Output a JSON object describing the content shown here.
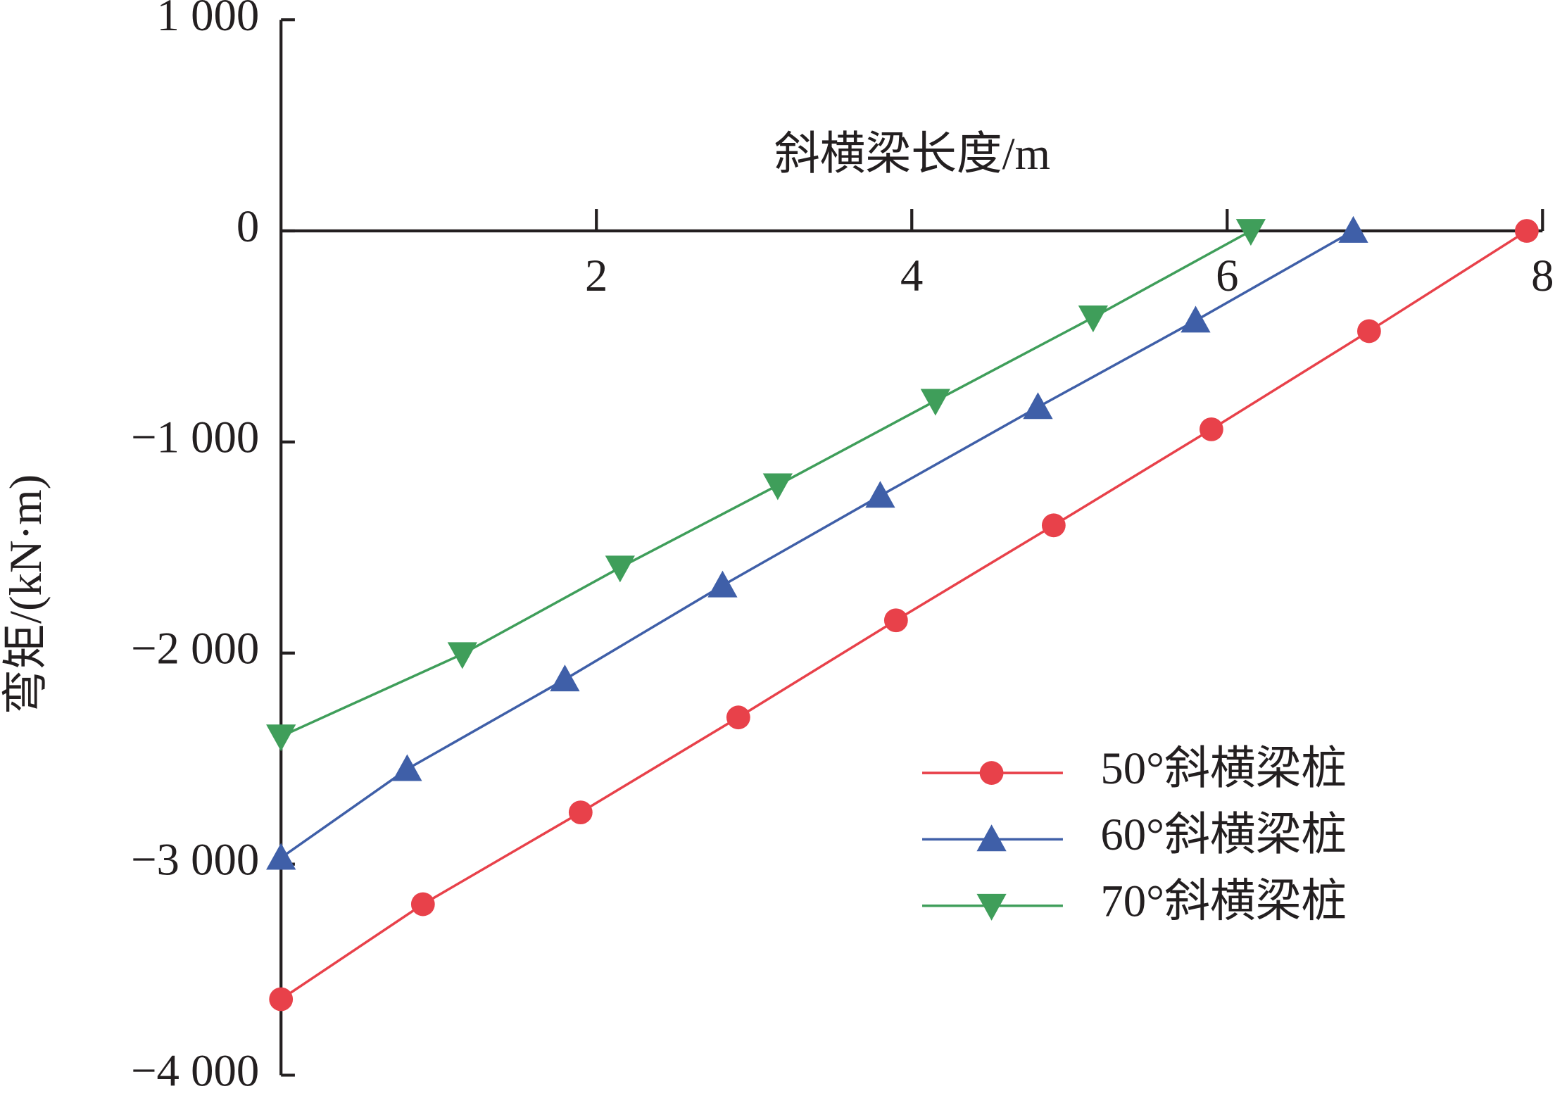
{
  "chart_data": {
    "type": "line",
    "xlabel": "斜横梁长度/m",
    "ylabel": "弯矩/(kN·m)",
    "xlim": [
      0,
      8
    ],
    "xticks": [
      2,
      4,
      6,
      8
    ],
    "ylim": [
      -4000,
      1000
    ],
    "yticks": [
      {
        "value": 1000,
        "label": "1 000"
      },
      0,
      {
        "value": -1000,
        "label": "−1 000"
      },
      {
        "value": -2000,
        "label": "−2 000"
      },
      {
        "value": -3000,
        "label": "−3 000"
      },
      {
        "value": -4000,
        "label": "−4 000"
      }
    ],
    "legend": "lower right",
    "series": [
      {
        "name": "50°斜横梁桩",
        "color": "#e8414a",
        "marker": "circle",
        "x": [
          0,
          0.9,
          1.9,
          2.9,
          3.9,
          4.9,
          5.9,
          6.9,
          7.9
        ],
        "values": [
          -3640,
          -3190,
          -2755,
          -2305,
          -1845,
          -1395,
          -940,
          -475,
          0
        ]
      },
      {
        "name": "60°斜横梁桩",
        "color": "#3f5fa8",
        "marker": "triangle-up",
        "x": [
          0,
          0.8,
          1.8,
          2.8,
          3.8,
          4.8,
          5.8,
          6.8
        ],
        "values": [
          -2970,
          -2550,
          -2125,
          -1680,
          -1255,
          -835,
          -425,
          0
        ]
      },
      {
        "name": "70°斜横梁桩",
        "color": "#3f9e5a",
        "marker": "triangle-down",
        "x": [
          0,
          1.15,
          2.15,
          3.15,
          4.15,
          5.15,
          6.15
        ],
        "values": [
          -2395,
          -2005,
          -1595,
          -1205,
          -805,
          -410,
          0
        ]
      }
    ]
  }
}
